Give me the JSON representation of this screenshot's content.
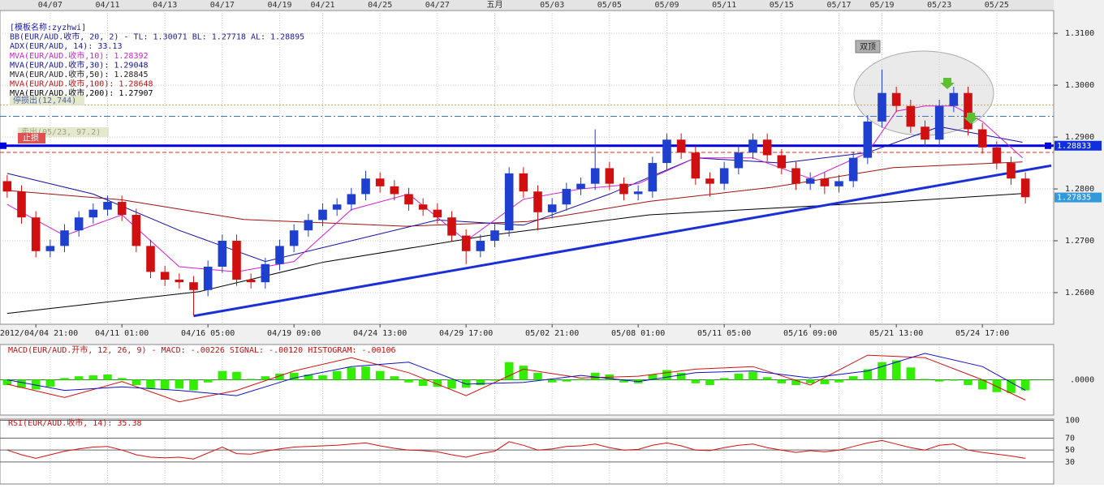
{
  "chart_data": [
    {
      "type": "candlestick",
      "categories": [
        null,
        null,
        "2012/04/04 21:00",
        null,
        null,
        null,
        null,
        null,
        "04/11 01:00",
        null,
        null,
        null,
        null,
        null,
        "04/16 05:00",
        null,
        null,
        null,
        null,
        null,
        "04/19 09:00",
        null,
        null,
        null,
        null,
        null,
        "04/24 13:00",
        null,
        null,
        null,
        null,
        null,
        "04/29 17:00",
        null,
        null,
        null,
        null,
        null,
        "05/02 21:00",
        null,
        null,
        null,
        null,
        null,
        "05/08 01:00",
        null,
        null,
        null,
        null,
        null,
        "05/11 05:00",
        null,
        null,
        null,
        null,
        null,
        "05/16 09:00",
        null,
        null,
        null,
        null,
        null,
        "05/21 13:00",
        null,
        null,
        null,
        null,
        null,
        "05/24 17:00",
        null,
        null,
        null
      ],
      "top_labels": [
        null,
        null,
        null,
        "04/07",
        null,
        null,
        null,
        "04/11",
        null,
        null,
        null,
        "04/13",
        null,
        null,
        null,
        "04/17",
        null,
        null,
        null,
        "04/19",
        null,
        null,
        "04/21",
        null,
        null,
        null,
        "04/25",
        null,
        null,
        null,
        "04/27",
        null,
        null,
        null,
        "五月",
        null,
        null,
        null,
        "05/03",
        null,
        null,
        null,
        "05/05",
        null,
        null,
        null,
        "05/09",
        null,
        null,
        null,
        "05/11",
        null,
        null,
        null,
        "05/15",
        null,
        null,
        null,
        "05/17",
        null,
        null,
        "05/19",
        null,
        null,
        null,
        "05/23",
        null,
        null,
        null,
        "05/25",
        null,
        null
      ],
      "open": [
        1.2815,
        1.2795,
        1.2745,
        1.268,
        1.269,
        1.272,
        1.2745,
        1.276,
        1.2775,
        1.275,
        1.269,
        1.264,
        1.2625,
        1.262,
        1.2605,
        1.265,
        1.27,
        1.2625,
        1.262,
        1.2655,
        1.269,
        1.272,
        1.274,
        1.276,
        1.277,
        1.279,
        1.282,
        1.2805,
        1.279,
        1.277,
        1.276,
        1.2745,
        1.271,
        1.268,
        1.27,
        1.272,
        1.283,
        1.2795,
        1.2755,
        1.277,
        1.28,
        1.281,
        1.284,
        1.281,
        1.279,
        1.2795,
        1.285,
        1.2895,
        1.287,
        1.282,
        1.281,
        1.284,
        1.287,
        1.2895,
        1.2865,
        1.284,
        1.281,
        1.282,
        1.2805,
        1.2815,
        1.286,
        1.293,
        1.2985,
        1.296,
        1.292,
        1.2895,
        1.296,
        1.2985,
        1.2915,
        1.288,
        1.285,
        1.282
      ],
      "high": [
        1.2827,
        1.2807,
        1.2757,
        1.2702,
        1.2732,
        1.2757,
        1.2772,
        1.2787,
        1.2787,
        1.2762,
        1.2702,
        1.2652,
        1.2637,
        1.2632,
        1.2662,
        1.2712,
        1.2712,
        1.2637,
        1.2667,
        1.2702,
        1.2732,
        1.2752,
        1.2772,
        1.2782,
        1.2802,
        1.2835,
        1.2832,
        1.2817,
        1.2802,
        1.2782,
        1.2772,
        1.2757,
        1.2722,
        1.2712,
        1.2732,
        1.2842,
        1.2842,
        1.2807,
        1.2782,
        1.2812,
        1.2822,
        1.2915,
        1.2852,
        1.2822,
        1.2807,
        1.2862,
        1.2907,
        1.2907,
        1.2882,
        1.2832,
        1.2852,
        1.2882,
        1.2907,
        1.2907,
        1.2877,
        1.2852,
        1.2832,
        1.2832,
        1.2827,
        1.2872,
        1.2942,
        1.303,
        1.2997,
        1.2972,
        1.2932,
        1.2972,
        1.2997,
        1.2997,
        1.2927,
        1.2892,
        1.2862,
        1.2832
      ],
      "low": [
        1.2783,
        1.2733,
        1.2668,
        1.2668,
        1.2678,
        1.2708,
        1.2733,
        1.2748,
        1.2738,
        1.2678,
        1.2628,
        1.2613,
        1.2608,
        1.2556,
        1.2593,
        1.2638,
        1.2613,
        1.2608,
        1.2608,
        1.2643,
        1.2678,
        1.2708,
        1.2728,
        1.2748,
        1.2758,
        1.2778,
        1.2793,
        1.2778,
        1.2758,
        1.2748,
        1.2733,
        1.2698,
        1.2655,
        1.2668,
        1.2688,
        1.2708,
        1.2783,
        1.272,
        1.2743,
        1.2758,
        1.2788,
        1.2798,
        1.2798,
        1.2778,
        1.2778,
        1.2783,
        1.2838,
        1.2858,
        1.2808,
        1.2785,
        1.2798,
        1.2828,
        1.2858,
        1.2853,
        1.2828,
        1.2798,
        1.2798,
        1.279,
        1.2793,
        1.2803,
        1.2848,
        1.2918,
        1.2948,
        1.2908,
        1.2883,
        1.2883,
        1.2948,
        1.2903,
        1.2868,
        1.2838,
        1.2808,
        1.2772
      ],
      "close": [
        1.2795,
        1.2745,
        1.268,
        1.269,
        1.272,
        1.2745,
        1.276,
        1.2775,
        1.275,
        1.269,
        1.264,
        1.2625,
        1.262,
        1.2605,
        1.265,
        1.27,
        1.2625,
        1.262,
        1.2655,
        1.269,
        1.272,
        1.274,
        1.276,
        1.277,
        1.279,
        1.282,
        1.2805,
        1.279,
        1.277,
        1.276,
        1.2745,
        1.271,
        1.268,
        1.27,
        1.272,
        1.283,
        1.2795,
        1.2755,
        1.277,
        1.28,
        1.281,
        1.284,
        1.281,
        1.279,
        1.2795,
        1.285,
        1.2895,
        1.287,
        1.282,
        1.281,
        1.284,
        1.287,
        1.2895,
        1.2865,
        1.284,
        1.281,
        1.282,
        1.2805,
        1.2815,
        1.286,
        1.293,
        1.2985,
        1.296,
        1.292,
        1.2895,
        1.296,
        1.2985,
        1.2915,
        1.288,
        1.285,
        1.282,
        1.2784
      ],
      "up_color": "#1f3fcf",
      "down_color": "#d01010",
      "ylim": [
        1.2539,
        1.3144
      ],
      "yticks": [
        {
          "value": 1.26,
          "label": "1.2600"
        },
        {
          "value": 1.27,
          "label": "1.2700"
        },
        {
          "value": 1.28,
          "label": "1.2800"
        },
        {
          "value": 1.29,
          "label": "1.2900"
        },
        {
          "value": 1.3,
          "label": "1.3000"
        },
        {
          "value": 1.31,
          "label": "1.3100"
        }
      ],
      "grid": true,
      "overlays": [
        {
          "color": "#000000",
          "x": [
            0,
            13.4,
            22.1,
            33.5,
            44.8,
            56.1,
            61.8,
            70.8
          ],
          "values": [
            1.256,
            1.2602,
            1.2659,
            1.271,
            1.275,
            1.2767,
            1.2775,
            1.2791
          ]
        },
        {
          "color": "#a01010",
          "x": [
            0,
            8,
            16.5,
            27.8,
            36.3,
            44.8,
            53.3,
            61.8,
            70.8
          ],
          "values": [
            1.2797,
            1.2779,
            1.2741,
            1.2728,
            1.2737,
            1.2776,
            1.2803,
            1.2841,
            1.2852
          ]
        },
        {
          "color": "#1010a0",
          "x": [
            0,
            6,
            12,
            18,
            24,
            30,
            36,
            42,
            48,
            54,
            60,
            65,
            70.8
          ],
          "values": [
            1.283,
            1.279,
            1.272,
            1.266,
            1.27,
            1.274,
            1.273,
            1.279,
            1.286,
            1.285,
            1.287,
            1.292,
            1.289
          ]
        },
        {
          "color": "#d020d0",
          "x": [
            0,
            4,
            8,
            12,
            16,
            20,
            24,
            28,
            32,
            36,
            40,
            44,
            48,
            52,
            56,
            60,
            62,
            64,
            66,
            68,
            70.8
          ],
          "values": [
            1.277,
            1.271,
            1.275,
            1.265,
            1.264,
            1.266,
            1.276,
            1.279,
            1.27,
            1.278,
            1.28,
            1.281,
            1.286,
            1.286,
            1.282,
            1.287,
            1.295,
            1.296,
            1.296,
            1.293,
            1.286
          ]
        }
      ],
      "trendline": {
        "color": "#1a2fd8",
        "x": [
          13,
          72.8
        ],
        "values": [
          1.2555,
          1.2845
        ]
      },
      "hlines": [
        {
          "value": 1.28833,
          "color": "#0000dd",
          "style": "thick"
        },
        {
          "value": 1.29617,
          "color": "#c8a060",
          "style": "dotted"
        },
        {
          "value": 1.294,
          "color": "#4070c0",
          "style": "dashdot"
        },
        {
          "value": 1.28705,
          "color": "#d03030",
          "style": "dashed"
        }
      ],
      "price_marks": [
        {
          "value": 1.28833,
          "color": "#1030e0"
        },
        {
          "value": 1.27835,
          "color": "#3399dd"
        }
      ],
      "legend": [
        {
          "text": "[模板名称:zyzhwi]",
          "color": "#1a1aa0"
        },
        {
          "text": "BB(EUR/AUD.收市, 20, 2) -  TL: 1.30071  BL: 1.27718  AL: 1.28895",
          "color": "#1a1aa0"
        },
        {
          "text": "ADX(EUR/AUD, 14): 33.13",
          "color": "#1a1aa0"
        },
        {
          "text": "MVA(EUR/AUD.收市,10): 1.28392",
          "color": "#d020d0"
        },
        {
          "text": "MVA(EUR/AUD.收市,30): 1.29048",
          "color": "#1010a0"
        },
        {
          "text": "MVA(EUR/AUD.收市,50): 1.28845",
          "color": "#202020"
        },
        {
          "text": "MVA(EUR/AUD.收市,100): 1.28648",
          "color": "#c01010"
        },
        {
          "text": "MVA(EUR/AUD.收市,200): 1.27907",
          "color": "#000000"
        }
      ],
      "notes": {
        "stop_out": "停损出(12,744)",
        "sell": "卖出(05/23, 97.2)",
        "stop": "止损",
        "pattern": "双顶"
      }
    },
    {
      "type": "macd",
      "title": "MACD(EUR/AUD.开市, 12, 26, 9) -  MACD: -.00226  SIGNAL: -.00120  HISTOGRAM: -.00106",
      "values": [
        -0.0006,
        -0.0009,
        -0.0011,
        -0.0008,
        0.0002,
        0.0004,
        0.0005,
        0.0006,
        0.0002,
        -0.0006,
        -0.001,
        -0.0011,
        -0.001,
        -0.0012,
        -0.0003,
        0.001,
        0.0009,
        0.0001,
        0.0004,
        0.0007,
        0.0008,
        0.0006,
        0.0005,
        0.001,
        0.0014,
        0.0015,
        0.001,
        0.0004,
        -0.0003,
        -0.0007,
        -0.0008,
        -0.001,
        -0.0009,
        -0.0006,
        -0.0001,
        0.002,
        0.0016,
        0.0008,
        -0.0003,
        -0.0002,
        0.0001,
        0.0008,
        0.0006,
        -0.0003,
        -0.0004,
        0.0006,
        0.0011,
        0.0008,
        -0.0004,
        -0.0006,
        0.0002,
        0.0007,
        0.0009,
        0.0003,
        -0.0004,
        -0.0006,
        -0.0004,
        -0.0005,
        -0.0003,
        0.0004,
        0.0012,
        0.002,
        0.0022,
        0.0014,
        0.0001,
        -0.0002,
        -0.0001,
        -0.0006,
        -0.0011,
        -0.0014,
        -0.0015,
        -0.0012
      ],
      "color": "#33ee00",
      "lines": [
        {
          "color": "#d01010",
          "x": [
            0,
            4,
            8,
            12,
            16,
            20,
            24,
            28,
            32,
            36,
            40,
            44,
            48,
            52,
            56,
            60,
            64,
            68,
            71
          ],
          "values": [
            -0.0005,
            -0.002,
            -0.0002,
            -0.0025,
            -0.0012,
            0.001,
            0.0025,
            0.0008,
            -0.0018,
            0.0012,
            0.0002,
            0.0004,
            0.0012,
            0.0015,
            -0.0006,
            0.0028,
            0.0025,
            0.0,
            -0.0023
          ]
        },
        {
          "color": "#1010c0",
          "x": [
            0,
            4,
            8,
            12,
            16,
            20,
            24,
            28,
            32,
            36,
            40,
            44,
            48,
            52,
            56,
            60,
            64,
            68,
            71
          ],
          "values": [
            0.0,
            -0.0012,
            -0.0008,
            -0.0012,
            -0.0018,
            0.0002,
            0.0015,
            0.002,
            -0.0005,
            -0.0003,
            0.0005,
            -0.0002,
            0.0008,
            0.001,
            0.0002,
            0.001,
            0.003,
            0.0015,
            -0.0012
          ]
        }
      ],
      "ylim": [
        -0.004,
        0.004
      ],
      "yticks": [
        {
          "value": 0,
          "label": ".0000"
        }
      ]
    },
    {
      "type": "rsi",
      "title": "RSI(EUR/AUD.收市, 14): 35.38",
      "values": [
        50,
        42,
        36,
        42,
        48,
        52,
        55,
        56,
        50,
        42,
        38,
        37,
        38,
        35,
        45,
        55,
        44,
        43,
        48,
        52,
        55,
        56,
        57,
        58,
        60,
        62,
        57,
        53,
        50,
        49,
        47,
        42,
        38,
        44,
        48,
        64,
        58,
        50,
        52,
        56,
        57,
        60,
        54,
        50,
        51,
        58,
        62,
        57,
        50,
        49,
        54,
        58,
        60,
        54,
        50,
        46,
        49,
        47,
        50,
        56,
        62,
        66,
        60,
        54,
        50,
        58,
        60,
        50,
        46,
        43,
        40,
        36
      ],
      "color": "#d01010",
      "ylim": [
        -7,
        102
      ],
      "yticks": [
        30,
        50,
        70,
        100
      ]
    }
  ]
}
